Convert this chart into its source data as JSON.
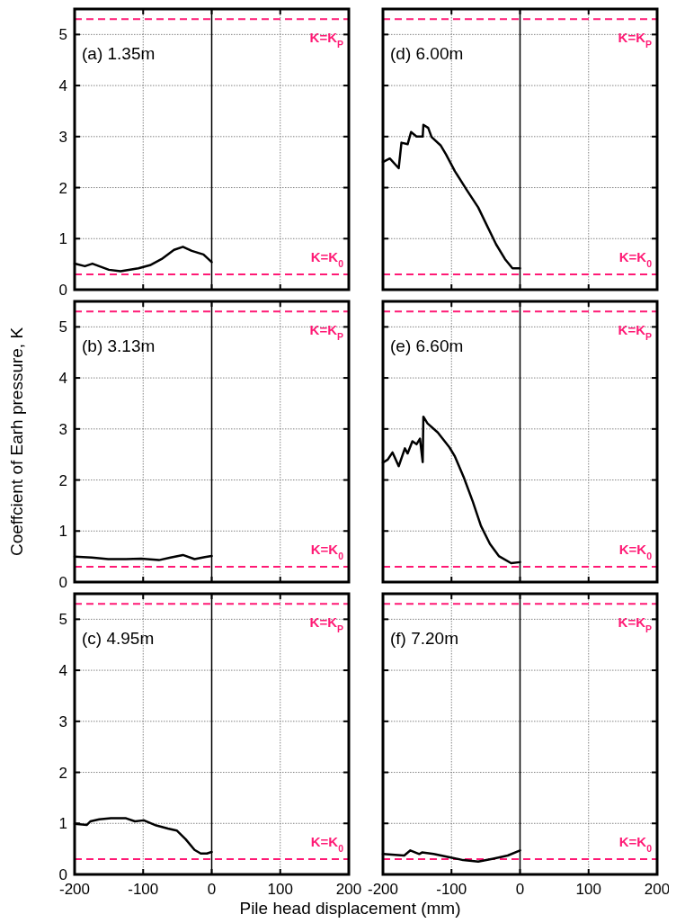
{
  "chart_data": [
    {
      "type": "line",
      "title": "(a) 1.35m",
      "x": [
        -200,
        -185,
        -174,
        -150,
        -133,
        -107,
        -90,
        -73,
        -55,
        -42,
        -29,
        -12,
        0
      ],
      "series": [
        {
          "color": "#000000",
          "values": [
            0.51,
            0.46,
            0.51,
            0.39,
            0.36,
            0.42,
            0.48,
            0.6,
            0.78,
            0.84,
            0.76,
            0.69,
            0.54
          ]
        }
      ],
      "xlim": [
        -200,
        200
      ],
      "ylim": [
        0,
        5.5
      ],
      "xticks": [
        -200,
        -100,
        0,
        100,
        200
      ],
      "yticks": [
        0,
        1,
        2,
        3,
        4,
        5
      ],
      "tick_labels": "y",
      "grid": true,
      "ref_lines": [
        {
          "axis": "x",
          "value": 0,
          "color": "#000000",
          "line_style": "solid"
        },
        {
          "axis": "y",
          "value": 5.3,
          "label": "K=K$_{P}$",
          "color": "#ff1a75",
          "line_style": "dashed"
        },
        {
          "axis": "y",
          "value": 0.3,
          "label": "K=K$_{0}$",
          "color": "#ff1a75",
          "line_style": "dashed"
        }
      ]
    },
    {
      "type": "line",
      "title": "(d) 6.00m",
      "x": [
        -200,
        -190,
        -177,
        -173,
        -164,
        -159,
        -151,
        -142,
        -141,
        -134,
        -129,
        -116,
        -108,
        -95,
        -78,
        -61,
        -48,
        -35,
        -22,
        -11,
        0
      ],
      "series": [
        {
          "color": "#000000",
          "values": [
            2.5,
            2.57,
            2.38,
            2.88,
            2.85,
            3.09,
            3.0,
            3.0,
            3.23,
            3.17,
            2.99,
            2.83,
            2.65,
            2.32,
            1.96,
            1.61,
            1.25,
            0.89,
            0.6,
            0.42,
            0.42
          ]
        }
      ],
      "xlim": [
        -200,
        200
      ],
      "ylim": [
        0,
        5.5
      ],
      "xticks": [
        -200,
        -100,
        0,
        100,
        200
      ],
      "yticks": [
        0,
        1,
        2,
        3,
        4,
        5
      ],
      "tick_labels": false,
      "grid": true,
      "ref_lines": [
        {
          "axis": "x",
          "value": 0,
          "color": "#000000",
          "line_style": "solid"
        },
        {
          "axis": "y",
          "value": 5.3,
          "label": "K=K$_{P}$",
          "color": "#ff1a75",
          "line_style": "dashed"
        },
        {
          "axis": "y",
          "value": 0.3,
          "label": "K=K$_{0}$",
          "color": "#ff1a75",
          "line_style": "dashed"
        }
      ]
    },
    {
      "type": "line",
      "title": "(b) 3.13m",
      "ylabel": "Coeffcient of Earh pressure, K",
      "x": [
        -200,
        -175,
        -151,
        -125,
        -103,
        -77,
        -60,
        -42,
        -25,
        -10,
        0
      ],
      "series": [
        {
          "color": "#000000",
          "values": [
            0.5,
            0.48,
            0.45,
            0.45,
            0.46,
            0.43,
            0.48,
            0.53,
            0.45,
            0.49,
            0.51
          ]
        }
      ],
      "xlim": [
        -200,
        200
      ],
      "ylim": [
        0,
        5.5
      ],
      "xticks": [
        -200,
        -100,
        0,
        100,
        200
      ],
      "yticks": [
        0,
        1,
        2,
        3,
        4,
        5
      ],
      "tick_labels": "y",
      "grid": true,
      "ref_lines": [
        {
          "axis": "x",
          "value": 0,
          "color": "#000000",
          "line_style": "solid"
        },
        {
          "axis": "y",
          "value": 5.3,
          "label": "K=K$_{P}$",
          "color": "#ff1a75",
          "line_style": "dashed"
        },
        {
          "axis": "y",
          "value": 0.3,
          "label": "K=K$_{0}$",
          "color": "#ff1a75",
          "line_style": "dashed"
        }
      ]
    },
    {
      "type": "line",
      "title": "(e) 6.60m",
      "x": [
        -200,
        -193,
        -186,
        -177,
        -168,
        -164,
        -157,
        -151,
        -146,
        -142,
        -141,
        -135,
        -120,
        -103,
        -95,
        -82,
        -69,
        -57,
        -44,
        -31,
        -13,
        0
      ],
      "series": [
        {
          "color": "#000000",
          "values": [
            2.34,
            2.4,
            2.54,
            2.27,
            2.62,
            2.52,
            2.76,
            2.7,
            2.81,
            2.35,
            3.24,
            3.11,
            2.93,
            2.64,
            2.46,
            2.05,
            1.58,
            1.1,
            0.75,
            0.51,
            0.37,
            0.39
          ]
        }
      ],
      "xlim": [
        -200,
        200
      ],
      "ylim": [
        0,
        5.5
      ],
      "xticks": [
        -200,
        -100,
        0,
        100,
        200
      ],
      "yticks": [
        0,
        1,
        2,
        3,
        4,
        5
      ],
      "tick_labels": false,
      "grid": true,
      "ref_lines": [
        {
          "axis": "x",
          "value": 0,
          "color": "#000000",
          "line_style": "solid"
        },
        {
          "axis": "y",
          "value": 5.3,
          "label": "K=K$_{P}$",
          "color": "#ff1a75",
          "line_style": "dashed"
        },
        {
          "axis": "y",
          "value": 0.3,
          "label": "K=K$_{0}$",
          "color": "#ff1a75",
          "line_style": "dashed"
        }
      ]
    },
    {
      "type": "line",
      "title": "(c) 4.95m",
      "xlabel": "Pile head displacement (mm)",
      "x": [
        -200,
        -182,
        -177,
        -164,
        -147,
        -125,
        -112,
        -99,
        -81,
        -64,
        -51,
        -38,
        -25,
        -16,
        -7,
        0
      ],
      "series": [
        {
          "color": "#000000",
          "values": [
            0.99,
            0.97,
            1.04,
            1.08,
            1.1,
            1.1,
            1.04,
            1.06,
            0.96,
            0.9,
            0.86,
            0.69,
            0.48,
            0.41,
            0.41,
            0.44
          ]
        }
      ],
      "xlim": [
        -200,
        200
      ],
      "ylim": [
        0,
        5.5
      ],
      "xticks": [
        -200,
        -100,
        0,
        100,
        200
      ],
      "yticks": [
        0,
        1,
        2,
        3,
        4,
        5
      ],
      "grid": true,
      "ref_lines": [
        {
          "axis": "x",
          "value": 0,
          "color": "#000000",
          "line_style": "solid"
        },
        {
          "axis": "y",
          "value": 5.3,
          "label": "K=K$_{P}$",
          "color": "#ff1a75",
          "line_style": "dashed"
        },
        {
          "axis": "y",
          "value": 0.3,
          "label": "K=K$_{0}$",
          "color": "#ff1a75",
          "line_style": "dashed"
        }
      ]
    },
    {
      "type": "line",
      "title": "(f) 7.20m",
      "x": [
        -200,
        -169,
        -160,
        -147,
        -143,
        -126,
        -104,
        -83,
        -61,
        -39,
        -18,
        0
      ],
      "series": [
        {
          "color": "#000000",
          "values": [
            0.4,
            0.37,
            0.47,
            0.4,
            0.43,
            0.4,
            0.34,
            0.28,
            0.25,
            0.31,
            0.37,
            0.47
          ]
        }
      ],
      "xlim": [
        -200,
        200
      ],
      "ylim": [
        0,
        5.5
      ],
      "xticks": [
        -200,
        -100,
        0,
        100,
        200
      ],
      "yticks": [
        0,
        1,
        2,
        3,
        4,
        5
      ],
      "tick_labels": "x",
      "grid": true,
      "ref_lines": [
        {
          "axis": "x",
          "value": 0,
          "color": "#000000",
          "line_style": "solid"
        },
        {
          "axis": "y",
          "value": 5.3,
          "label": "K=K$_{P}$",
          "color": "#ff1a75",
          "line_style": "dashed"
        },
        {
          "axis": "y",
          "value": 0.3,
          "label": "K=K$_{0}$",
          "color": "#ff1a75",
          "line_style": "dashed"
        }
      ]
    }
  ]
}
